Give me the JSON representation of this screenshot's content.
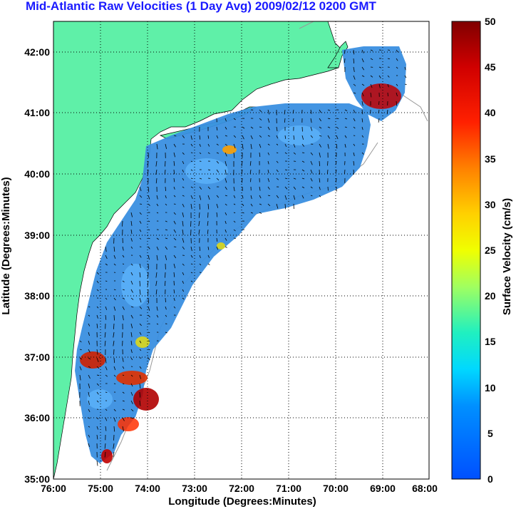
{
  "title": "Mid-Atlantic Raw Velocities (1 Day Avg) 2009/02/12 0200 GMT",
  "map": {
    "xlabel": "Longitude (Degrees:Minutes)",
    "ylabel": "Latitude (Degrees:Minutes)",
    "x_ticks": [
      "76:00",
      "75:00",
      "74:00",
      "73:00",
      "72:00",
      "71:00",
      "70:00",
      "69:00",
      "68:00"
    ],
    "y_ticks": [
      "42:00",
      "41:00",
      "40:00",
      "39:00",
      "38:00",
      "37:00",
      "36:00",
      "35:00"
    ],
    "lon_range": [
      -76,
      -68
    ],
    "lat_range": [
      35,
      42.5
    ],
    "land_color": "#5ff0a8",
    "grid": "dotted"
  },
  "colorbar": {
    "label": "Surface Velocity (cm/s)",
    "ticks": [
      "50",
      "45",
      "40",
      "35",
      "30",
      "25",
      "20",
      "15",
      "10",
      "5",
      "0"
    ],
    "range": [
      0,
      50
    ]
  }
}
